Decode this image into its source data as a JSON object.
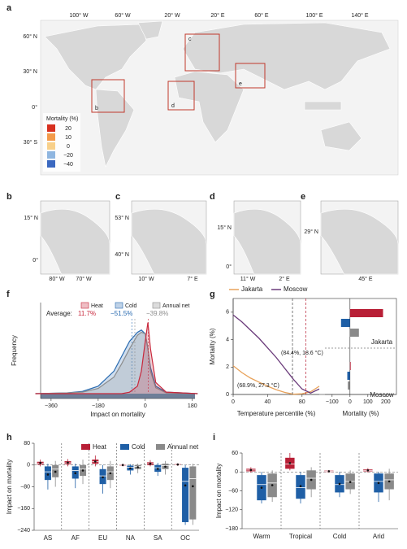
{
  "maps": {
    "a": {
      "label": "a",
      "lon_ticks": [
        "100° W",
        "60° W",
        "20° W",
        "20° E",
        "60° E",
        "100° E",
        "140° E"
      ],
      "lat_ticks": [
        "60° N",
        "30° N",
        "0°",
        "30° S"
      ],
      "legend_title": "Mortality (%)",
      "legend": [
        {
          "label": "20",
          "color": "#d7301f"
        },
        {
          "label": "10",
          "color": "#f39a4a"
        },
        {
          "label": "0",
          "color": "#f8d08a"
        },
        {
          "label": "−20",
          "color": "#8fb6e0"
        },
        {
          "label": "−40",
          "color": "#3a68c0"
        }
      ],
      "boxes": [
        "b",
        "c",
        "d",
        "e"
      ]
    },
    "b": {
      "label": "b",
      "lat_ticks": [
        "15° N",
        "0°"
      ],
      "lon_ticks": [
        "80° W",
        "70° W"
      ]
    },
    "c": {
      "label": "c",
      "lat_ticks": [
        "53° N",
        "40° N"
      ],
      "lon_ticks": [
        "10° W",
        "7° E"
      ]
    },
    "d": {
      "label": "d",
      "lat_ticks": [
        "15° N",
        "0°"
      ],
      "lon_ticks": [
        "11° W",
        "2° E"
      ]
    },
    "e": {
      "label": "e",
      "lat_ticks": [
        "29° N"
      ],
      "lon_ticks": [
        "45° E"
      ]
    }
  },
  "chart_data": [
    {
      "type": "density",
      "label": "f",
      "xlabel": "Impact on mortality",
      "ylabel": "Frequency",
      "xlim": [
        -400,
        190
      ],
      "xticks": [
        {
          "value": -360,
          "label": "−360"
        },
        {
          "value": -180,
          "label": "−180"
        },
        0,
        180
      ],
      "ylim": [
        0,
        1
      ],
      "average_label": "Average:",
      "x": [
        -420,
        -300,
        -240,
        -180,
        -120,
        -90,
        -60,
        -30,
        -15,
        0,
        10,
        20,
        40,
        80,
        200
      ],
      "series": [
        {
          "name": "Heat",
          "color": "#c8283c",
          "values": [
            0,
            0,
            0,
            0,
            0,
            0,
            0.02,
            0.1,
            0.3,
            0.7,
            0.95,
            0.6,
            0.15,
            0.02,
            0
          ],
          "mean": 11.7,
          "mean_label": "11.7%"
        },
        {
          "name": "Cold",
          "color": "#2a6bb0",
          "values": [
            0,
            0.01,
            0.03,
            0.1,
            0.3,
            0.5,
            0.7,
            0.82,
            0.85,
            0.8,
            0.6,
            0.35,
            0.1,
            0.02,
            0
          ],
          "mean": -51.5,
          "mean_label": "−51.5%"
        },
        {
          "name": "Annual net",
          "color": "#8c8c8c",
          "values": [
            0,
            0.01,
            0.02,
            0.07,
            0.22,
            0.4,
            0.6,
            0.78,
            0.82,
            0.8,
            0.62,
            0.3,
            0.08,
            0.01,
            0
          ],
          "mean": -39.8,
          "mean_label": "−39.8%"
        }
      ]
    },
    {
      "type": "line",
      "label": "g",
      "xlabel": "Temperature percentile (%)",
      "ylabel": "Mortality (%)",
      "xlim": [
        0,
        100
      ],
      "xticks": [
        0,
        40,
        80
      ],
      "ylim": [
        0,
        7
      ],
      "yticks": [
        0,
        2,
        4,
        6
      ],
      "x": [
        0,
        10,
        20,
        30,
        40,
        50,
        60,
        70,
        80,
        90,
        100
      ],
      "series": [
        {
          "name": "Jakarta",
          "color": "#e8a25a",
          "values": [
            2.1,
            1.6,
            1.2,
            0.9,
            0.6,
            0.35,
            0.15,
            0.02,
            0.05,
            0.2,
            0.6
          ],
          "mmt": 68.9,
          "mmt_label": "(68.9%, 27.3 °C)"
        },
        {
          "name": "Moscow",
          "color": "#6a3a7a",
          "values": [
            5.8,
            5.3,
            4.7,
            4.1,
            3.4,
            2.7,
            1.9,
            1.1,
            0.4,
            0.1,
            0.4
          ],
          "mmt": 84.4,
          "mmt_label": "(84.4%, 18.6 °C)"
        }
      ]
    },
    {
      "type": "hbar",
      "xlabel": "Mortality (%)",
      "xlim": [
        -140,
        260
      ],
      "xticks": [
        {
          "value": -100,
          "label": "−100"
        },
        0,
        100,
        200
      ],
      "categories": [
        "Jakarta",
        "Moscow"
      ],
      "series": [
        {
          "color": "#b81f36",
          "values": [
            185,
            4
          ]
        },
        {
          "color": "#1f5fa6",
          "values": [
            -50,
            -15
          ]
        },
        {
          "color": "#8a8a8a",
          "values": [
            50,
            -12
          ]
        }
      ]
    },
    {
      "type": "box",
      "label": "h",
      "ylabel": "Impact on mortality",
      "ylim": [
        -240,
        80
      ],
      "yticks": [
        {
          "value": -240,
          "label": "−240"
        },
        {
          "value": -160,
          "label": "−160"
        },
        {
          "value": -80,
          "label": "−80"
        },
        0,
        80
      ],
      "categories": [
        "AS",
        "AF",
        "EU",
        "NA",
        "SA",
        "OC"
      ],
      "series": [
        {
          "name": "Heat",
          "color": "#b81f36",
          "values": [
            [
              -5,
              2,
              7,
              12,
              20
            ],
            [
              -5,
              3,
              8,
              14,
              22
            ],
            [
              -5,
              5,
              12,
              20,
              35
            ],
            [
              -5,
              -2,
              0,
              2,
              5
            ],
            [
              -5,
              0,
              5,
              10,
              18
            ],
            [
              -3,
              0,
              2,
              4,
              6
            ]
          ],
          "means": [
            8,
            9,
            13,
            0,
            5,
            2
          ]
        },
        {
          "name": "Cold",
          "color": "#1f5fa6",
          "values": [
            [
              -90,
              -55,
              -25,
              -5,
              5
            ],
            [
              -85,
              -50,
              -20,
              -5,
              5
            ],
            [
              -105,
              -70,
              -40,
              -15,
              0
            ],
            [
              -35,
              -20,
              -8,
              -2,
              3
            ],
            [
              -40,
              -25,
              -10,
              0,
              8
            ],
            [
              -220,
              -210,
              -60,
              -10,
              0
            ]
          ],
          "means": [
            -35,
            -30,
            -45,
            -12,
            -14,
            -75
          ]
        },
        {
          "name": "Annual net",
          "color": "#8a8a8a",
          "values": [
            [
              -80,
              -45,
              -15,
              0,
              15
            ],
            [
              -70,
              -40,
              -15,
              0,
              20
            ],
            [
              -85,
              -55,
              -25,
              -5,
              15
            ],
            [
              -30,
              -15,
              -5,
              0,
              5
            ],
            [
              -35,
              -15,
              -2,
              5,
              15
            ],
            [
              -220,
              -200,
              -50,
              -5,
              5
            ]
          ],
          "means": [
            -25,
            -20,
            -30,
            -8,
            -6,
            -78
          ]
        }
      ]
    },
    {
      "type": "box",
      "label": "i",
      "ylabel": "Impact on mortality",
      "ylim": [
        -180,
        60
      ],
      "yticks": [
        {
          "value": -180,
          "label": "−180"
        },
        {
          "value": -120,
          "label": "−120"
        },
        {
          "value": -60,
          "label": "−60"
        },
        0,
        60
      ],
      "categories": [
        "Warm",
        "Tropical",
        "Cold",
        "Arid"
      ],
      "series": [
        {
          "color": "#b81f36",
          "values": [
            [
              -2,
              2,
              6,
              10,
              15
            ],
            [
              5,
              10,
              25,
              45,
              60
            ],
            [
              -2,
              0,
              2,
              4,
              6
            ],
            [
              -2,
              2,
              5,
              8,
              12
            ]
          ],
          "means": [
            6,
            28,
            2,
            5
          ]
        },
        {
          "color": "#1f5fa6",
          "values": [
            [
              -100,
              -90,
              -40,
              -10,
              0
            ],
            [
              -100,
              -85,
              -50,
              -10,
              0
            ],
            [
              -80,
              -65,
              -40,
              -10,
              0
            ],
            [
              -95,
              -65,
              -30,
              -5,
              0
            ]
          ],
          "means": [
            -50,
            -45,
            -38,
            -35
          ]
        },
        {
          "color": "#8a8a8a",
          "values": [
            [
              -95,
              -80,
              -35,
              -5,
              5
            ],
            [
              -80,
              -55,
              -20,
              5,
              15
            ],
            [
              -70,
              -55,
              -30,
              -5,
              5
            ],
            [
              -90,
              -55,
              -25,
              -5,
              10
            ]
          ],
          "means": [
            -42,
            -25,
            -32,
            -30
          ]
        }
      ]
    }
  ]
}
